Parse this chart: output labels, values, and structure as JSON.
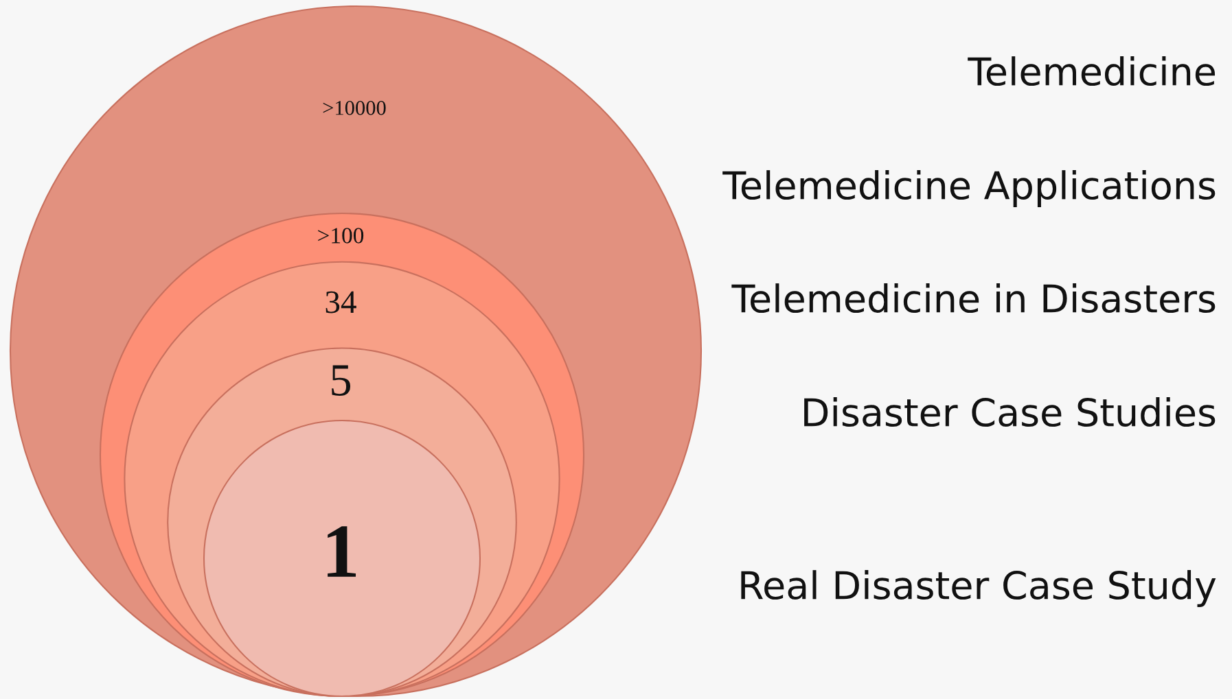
{
  "chart_data": {
    "type": "other",
    "categories": [
      "Telemedicine",
      "Telemedicine Applications",
      "Telemedicine in Disasters",
      "Disaster Case Studies",
      "Real Disaster Case Study"
    ],
    "values": [
      10000,
      100,
      34,
      5,
      1
    ],
    "value_labels": [
      ">10000",
      ">100",
      "34",
      "5",
      "1"
    ],
    "colors": [
      "#e2917f",
      "#fd8f76",
      "#f8a087",
      "#f3ae99",
      "#f0bbb0"
    ]
  }
}
